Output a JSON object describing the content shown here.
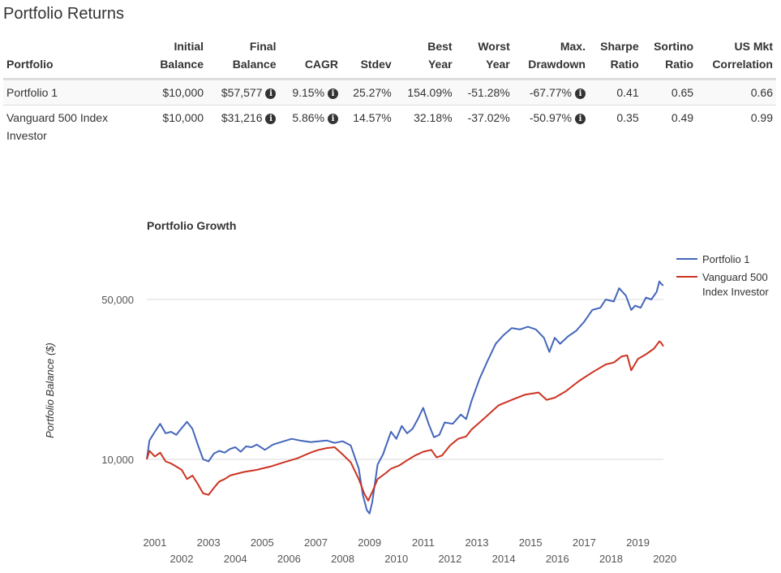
{
  "title": "Portfolio Returns",
  "table": {
    "headers": [
      [
        "Portfolio"
      ],
      [
        "Initial",
        "Balance"
      ],
      [
        "Final",
        "Balance"
      ],
      [
        "CAGR"
      ],
      [
        "Stdev"
      ],
      [
        "Best",
        "Year"
      ],
      [
        "Worst",
        "Year"
      ],
      [
        "Max.",
        "Drawdown"
      ],
      [
        "Sharpe",
        "Ratio"
      ],
      [
        "Sortino",
        "Ratio"
      ],
      [
        "US Mkt",
        "Correlation"
      ]
    ],
    "rows": [
      {
        "portfolio": "Portfolio 1",
        "initial": "$10,000",
        "final": "$57,577",
        "cagr": "9.15%",
        "stdev": "25.27%",
        "best": "154.09%",
        "worst": "-51.28%",
        "drawdown": "-67.77%",
        "sharpe": "0.41",
        "sortino": "0.65",
        "corr": "0.66"
      },
      {
        "portfolio": "Vanguard 500 Index Investor",
        "initial": "$10,000",
        "final": "$31,216",
        "cagr": "5.86%",
        "stdev": "14.57%",
        "best": "32.18%",
        "worst": "-37.02%",
        "drawdown": "-50.97%",
        "sharpe": "0.35",
        "sortino": "0.49",
        "corr": "0.99"
      }
    ]
  },
  "info_icon": "info-circle-icon",
  "chart_data": {
    "type": "line",
    "title": "Portfolio Growth",
    "ylabel": "Portfolio Balance ($)",
    "xlabel": "",
    "yscale": "log",
    "ylim": [
      5000,
      70000
    ],
    "xlim": [
      2000.9,
      2020.15
    ],
    "ytick_values": [
      10000,
      50000
    ],
    "ytick_labels": [
      "10,000",
      "50,000"
    ],
    "xtick_years": [
      2001,
      2002,
      2003,
      2004,
      2005,
      2006,
      2007,
      2008,
      2009,
      2010,
      2011,
      2012,
      2013,
      2014,
      2015,
      2016,
      2017,
      2018,
      2019,
      2020
    ],
    "legend": {
      "position": "top-right",
      "labels": [
        "Portfolio 1",
        "Vanguard 500 Index Investor"
      ],
      "label_lines": [
        [
          "Portfolio 1"
        ],
        [
          "Vanguard 500",
          "Index Investor"
        ]
      ]
    },
    "series": [
      {
        "name": "Portfolio 1",
        "color": "#4466bb",
        "x": [
          2000.9,
          2001.0,
          2001.2,
          2001.4,
          2001.6,
          2001.8,
          2002.0,
          2002.2,
          2002.4,
          2002.6,
          2002.8,
          2003.0,
          2003.2,
          2003.4,
          2003.6,
          2003.8,
          2004.0,
          2004.2,
          2004.4,
          2004.6,
          2004.8,
          2005.0,
          2005.3,
          2005.6,
          2006.0,
          2006.3,
          2006.6,
          2007.0,
          2007.3,
          2007.6,
          2007.9,
          2008.2,
          2008.5,
          2008.8,
          2008.95,
          2009.1,
          2009.2,
          2009.3,
          2009.5,
          2009.7,
          2010.0,
          2010.2,
          2010.4,
          2010.6,
          2010.8,
          2011.0,
          2011.2,
          2011.4,
          2011.6,
          2011.8,
          2012.0,
          2012.3,
          2012.6,
          2012.8,
          2013.0,
          2013.3,
          2013.6,
          2013.9,
          2014.2,
          2014.5,
          2014.8,
          2015.1,
          2015.4,
          2015.7,
          2015.9,
          2016.1,
          2016.3,
          2016.6,
          2016.9,
          2017.2,
          2017.5,
          2017.8,
          2018.0,
          2018.3,
          2018.5,
          2018.75,
          2018.95,
          2019.1,
          2019.3,
          2019.5,
          2019.7,
          2019.9,
          2020.0,
          2020.1,
          2020.15
        ],
        "values": [
          10000,
          12100,
          13200,
          14300,
          13000,
          13200,
          12800,
          13700,
          14600,
          13600,
          11600,
          10000,
          9800,
          10600,
          10900,
          10700,
          11100,
          11300,
          10800,
          11400,
          11300,
          11600,
          11000,
          11600,
          12000,
          12300,
          12100,
          11900,
          12000,
          12100,
          11800,
          12000,
          11500,
          9100,
          7000,
          6000,
          5800,
          6500,
          9500,
          10500,
          13200,
          12300,
          14000,
          13000,
          13600,
          15000,
          16800,
          14300,
          12500,
          12800,
          14500,
          14300,
          15700,
          15000,
          18000,
          22500,
          27000,
          32000,
          35000,
          37500,
          37000,
          38000,
          37000,
          34000,
          29500,
          34000,
          32000,
          34500,
          36500,
          40000,
          45000,
          46000,
          50000,
          49000,
          56000,
          52000,
          45000,
          47000,
          46000,
          51000,
          50000,
          54000,
          60000,
          58000,
          57577
        ]
      },
      {
        "name": "Vanguard 500 Index Investor",
        "color": "#cc3322",
        "x": [
          2000.9,
          2001.0,
          2001.2,
          2001.4,
          2001.6,
          2001.8,
          2002.0,
          2002.2,
          2002.4,
          2002.6,
          2002.8,
          2003.0,
          2003.2,
          2003.4,
          2003.6,
          2003.8,
          2004.0,
          2004.5,
          2005.0,
          2005.5,
          2006.0,
          2006.5,
          2007.0,
          2007.3,
          2007.6,
          2007.9,
          2008.2,
          2008.5,
          2008.8,
          2009.0,
          2009.15,
          2009.3,
          2009.5,
          2009.8,
          2010.0,
          2010.3,
          2010.6,
          2010.9,
          2011.2,
          2011.5,
          2011.7,
          2011.9,
          2012.2,
          2012.5,
          2012.8,
          2013.0,
          2013.5,
          2014.0,
          2014.5,
          2015.0,
          2015.5,
          2015.8,
          2016.1,
          2016.5,
          2017.0,
          2017.5,
          2018.0,
          2018.3,
          2018.6,
          2018.8,
          2018.95,
          2019.2,
          2019.5,
          2019.8,
          2020.0,
          2020.05,
          2020.15
        ],
        "values": [
          10000,
          10900,
          10300,
          10700,
          9800,
          9600,
          9300,
          9000,
          8200,
          8500,
          7800,
          7100,
          7000,
          7500,
          8000,
          8200,
          8500,
          8800,
          9000,
          9300,
          9700,
          10100,
          10700,
          11000,
          11200,
          11300,
          10500,
          9700,
          8200,
          7100,
          6600,
          7200,
          8200,
          8700,
          9100,
          9400,
          9900,
          10400,
          10800,
          11000,
          10200,
          10400,
          11500,
          12300,
          12600,
          13500,
          15200,
          17200,
          18200,
          19200,
          19600,
          18200,
          18600,
          19800,
          22000,
          24000,
          26000,
          26500,
          28200,
          28500,
          24500,
          27500,
          28800,
          30500,
          32800,
          32500,
          31216
        ]
      }
    ]
  }
}
